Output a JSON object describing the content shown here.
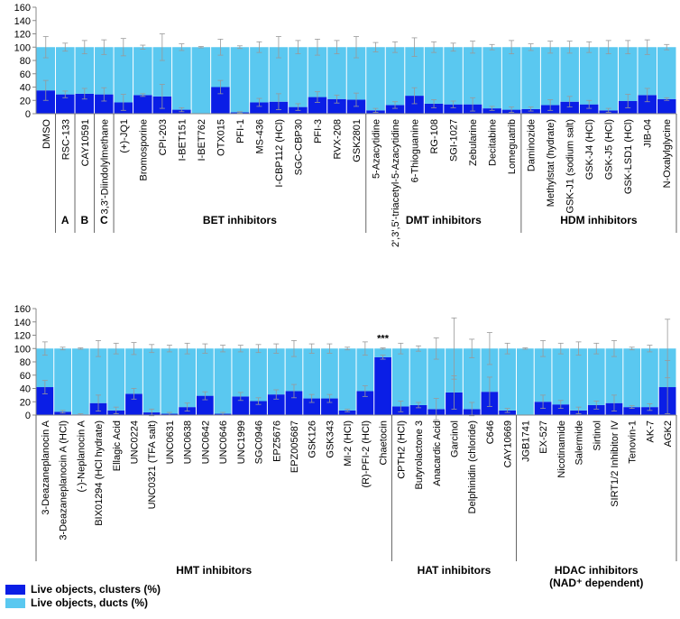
{
  "chart_data": [
    {
      "type": "bar",
      "stacked": true,
      "categories": [
        "DMSO",
        "RSC-133",
        "CAY10591",
        "3,3'-Diindolylmethane",
        "(+)-JQ1",
        "Bromosporine",
        "CPI-203",
        "I-BET151",
        "I-BET762",
        "OTX015",
        "PFI-1",
        "MS-436",
        "I-CBP112 (HCl)",
        "SGC-CBP30",
        "PFI-3",
        "RVX-208",
        "GSK2801",
        "5-Azacytidine",
        "2',3',5'-triacetyl-5-Azacytidine",
        "6-Thioguanine",
        "RG-108",
        "SGI-1027",
        "Zebularine",
        "Decitabine",
        "Lomeguatrib",
        "Daminozide",
        "Methylstat (hydrate)",
        "GSK-J1 (sodium salt)",
        "GSK-J4 (HCl)",
        "GSK-J5 (HCl)",
        "GSK-LSD1 (HCl)",
        "JIB-04",
        "N-Oxalylglycine"
      ],
      "series": [
        {
          "color": "#0a1ee6",
          "values": [
            35,
            29,
            30,
            29,
            17,
            28,
            26,
            6,
            0,
            40,
            2,
            17,
            18,
            10,
            25,
            22,
            21,
            5,
            13,
            27,
            15,
            14,
            14,
            8,
            6,
            7,
            13,
            18,
            14,
            5,
            19,
            28,
            22
          ],
          "errors": [
            15,
            5,
            8,
            10,
            12,
            2,
            18,
            3,
            0,
            10,
            1,
            6,
            12,
            5,
            8,
            6,
            10,
            3,
            5,
            12,
            6,
            5,
            10,
            3,
            4,
            3,
            8,
            8,
            6,
            3,
            10,
            10,
            2
          ]
        },
        {
          "color": "#5ac8f0",
          "values": [
            65,
            71,
            70,
            71,
            83,
            72,
            74,
            94,
            100,
            60,
            98,
            83,
            82,
            90,
            75,
            78,
            79,
            95,
            87,
            73,
            85,
            86,
            86,
            92,
            94,
            93,
            87,
            82,
            86,
            95,
            81,
            72,
            78
          ],
          "errors": [
            16,
            6,
            10,
            11,
            13,
            3,
            20,
            5,
            1,
            12,
            2,
            8,
            16,
            10,
            12,
            10,
            16,
            7,
            8,
            14,
            8,
            6,
            9,
            4,
            10,
            5,
            9,
            9,
            8,
            10,
            10,
            11,
            4
          ]
        }
      ],
      "groups": [
        "A",
        "B",
        "C",
        "BET inhibitors",
        "DMT inhibitors",
        "HDM inhibitors"
      ],
      "ylim": [
        0,
        160
      ],
      "yticks": [
        0,
        20,
        40,
        60,
        80,
        100,
        120,
        140,
        160
      ]
    },
    {
      "type": "bar",
      "stacked": true,
      "categories": [
        "3-Deazaneplanocin A",
        "3-Deazaneplanocin A (HCl)",
        "(-)-Neplanocin A",
        "BIX01294 (HCl hydrate)",
        "Ellagic Acid",
        "UNC0224",
        "UNC0321 (TFA salt)",
        "UNC0631",
        "UNC0638",
        "UNC0642",
        "UNC0646",
        "UNC1999",
        "SGC0946",
        "EPZ5676",
        "EPZ005687",
        "GSK126",
        "GSK343",
        "MI-2 (HCl)",
        "(R)-PFI-2 (HCl)",
        "Chaetocin",
        "CPTH2 (HCl)",
        "Butyrolactone 3",
        "Anacardic Acid",
        "Garcinol",
        "Delphinidin (chloride)",
        "C646",
        "CAY10669",
        "JGB1741",
        "EX-527",
        "Nicotinamide",
        "Salermide",
        "Sirtinol",
        "SIRT1/2 Inhibitor IV",
        "Tenovin-1",
        "AK-7",
        "AGK2"
      ],
      "series": [
        {
          "name": "Live objects, clusters (%)",
          "color": "#0a1ee6",
          "values": [
            42,
            5,
            1,
            18,
            7,
            32,
            4,
            2,
            12,
            29,
            2,
            28,
            21,
            31,
            36,
            25,
            25,
            7,
            36,
            87,
            13,
            15,
            9,
            34,
            9,
            35,
            7,
            0,
            20,
            16,
            7,
            15,
            18,
            12,
            12,
            42
          ],
          "errors": [
            10,
            2,
            1,
            12,
            5,
            8,
            5,
            2,
            6,
            6,
            2,
            6,
            5,
            7,
            10,
            6,
            6,
            2,
            8,
            3,
            8,
            4,
            16,
            25,
            10,
            22,
            3,
            0,
            10,
            6,
            5,
            6,
            12,
            2,
            5,
            40
          ]
        },
        {
          "name": "Live objects, ducts (%)",
          "color": "#5ac8f0",
          "values": [
            58,
            95,
            99,
            82,
            93,
            68,
            96,
            98,
            88,
            71,
            98,
            72,
            79,
            69,
            64,
            75,
            75,
            93,
            64,
            13,
            87,
            85,
            91,
            66,
            91,
            65,
            93,
            100,
            80,
            84,
            93,
            85,
            82,
            88,
            88,
            58
          ],
          "errors": [
            10,
            2,
            1,
            12,
            8,
            9,
            6,
            5,
            8,
            7,
            5,
            5,
            6,
            7,
            12,
            7,
            7,
            2,
            10,
            1,
            8,
            4,
            16,
            46,
            14,
            24,
            8,
            1,
            12,
            8,
            10,
            8,
            12,
            2,
            5,
            44
          ]
        }
      ],
      "groups": [
        "HMT inhibitors",
        "HAT inhibitors",
        [
          "HDAC inhibitors",
          "(NAD⁺ dependent)"
        ]
      ],
      "annotation": "***",
      "ylim": [
        0,
        160
      ],
      "yticks": [
        0,
        20,
        40,
        60,
        80,
        100,
        120,
        140,
        160
      ]
    }
  ]
}
